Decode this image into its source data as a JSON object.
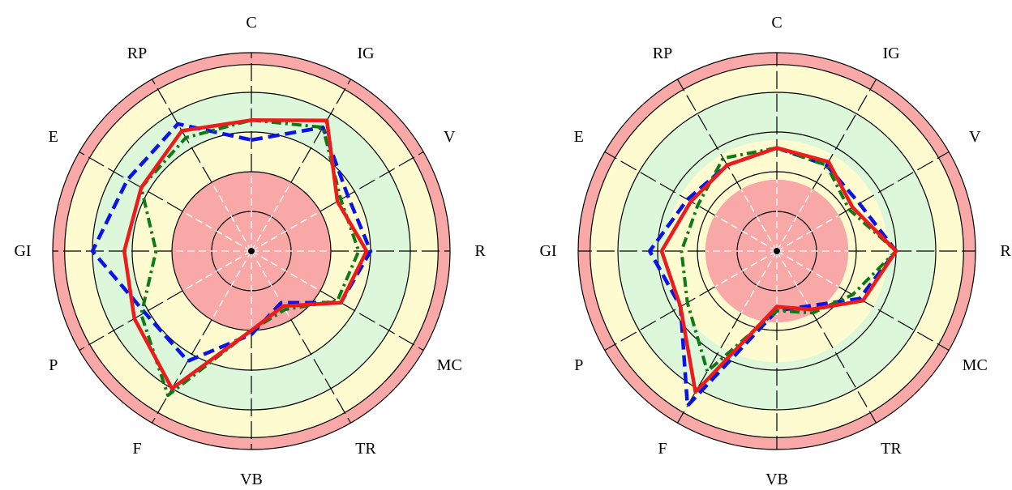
{
  "colors": {
    "ring_red": "#f9a8a8",
    "ring_yellow": "#fdfbcf",
    "ring_green": "#dcf7da",
    "series_blue": "#0a14e6",
    "series_green": "#0e7a14",
    "series_red": "#ee1b1b"
  },
  "chart_data": [
    {
      "type": "radar",
      "categories": [
        "C",
        "IG",
        "V",
        "R",
        "MC",
        "TR",
        "VB",
        "F",
        "P",
        "GI",
        "E",
        "RP"
      ],
      "rlim": [
        0,
        5
      ],
      "rings": [
        {
          "from": 0,
          "to": 2,
          "color": "red"
        },
        {
          "from": 2,
          "to": 3,
          "color": "yellow"
        },
        {
          "from": 3,
          "to": 4,
          "color": "green"
        },
        {
          "from": 4,
          "to": 4.7,
          "color": "yellow"
        },
        {
          "from": 4.7,
          "to": 5,
          "color": "red"
        }
      ],
      "grid_circles": [
        1,
        2,
        3,
        4,
        4.7,
        5
      ],
      "series": [
        {
          "style": "dashed",
          "color": "blue",
          "values": [
            2.8,
            3.6,
            2.8,
            3.0,
            2.6,
            1.5,
            2.1,
            3.2,
            3.1,
            4.0,
            3.6,
            3.7
          ]
        },
        {
          "style": "dash-dot",
          "color": "green",
          "values": [
            3.3,
            3.6,
            2.6,
            2.7,
            2.5,
            1.7,
            2.0,
            4.2,
            3.2,
            2.4,
            3.2,
            3.3
          ]
        },
        {
          "style": "solid",
          "color": "red",
          "values": [
            3.3,
            3.8,
            2.5,
            2.9,
            2.6,
            1.6,
            2.0,
            4.0,
            3.4,
            3.2,
            3.2,
            3.5
          ]
        }
      ]
    },
    {
      "type": "radar",
      "categories": [
        "C",
        "IG",
        "V",
        "R",
        "MC",
        "TR",
        "VB",
        "F",
        "P",
        "GI",
        "E",
        "RP"
      ],
      "rlim": [
        0,
        5
      ],
      "rings": [
        {
          "from": 0,
          "to": 1.8,
          "color": "red"
        },
        {
          "from": 1.8,
          "to": 2.8,
          "color": "yellow"
        },
        {
          "from": 2.8,
          "to": 4.0,
          "color": "green"
        },
        {
          "from": 4.0,
          "to": 4.7,
          "color": "yellow"
        },
        {
          "from": 4.7,
          "to": 5,
          "color": "red"
        }
      ],
      "grid_circles": [
        1,
        2,
        3,
        4,
        4.7,
        5
      ],
      "series": [
        {
          "style": "dashed",
          "color": "blue",
          "values": [
            2.6,
            2.5,
            2.4,
            3.0,
            2.4,
            1.6,
            1.5,
            4.5,
            2.8,
            3.2,
            2.6,
            2.5
          ]
        },
        {
          "style": "dash-dot",
          "color": "green",
          "values": [
            2.6,
            2.5,
            2.1,
            3.0,
            2.2,
            1.8,
            1.5,
            3.5,
            2.6,
            2.4,
            2.3,
            2.7
          ]
        },
        {
          "style": "solid",
          "color": "red",
          "values": [
            2.6,
            2.6,
            2.2,
            3.0,
            2.5,
            1.7,
            1.4,
            4.1,
            2.8,
            2.9,
            2.5,
            2.5
          ]
        }
      ]
    }
  ]
}
